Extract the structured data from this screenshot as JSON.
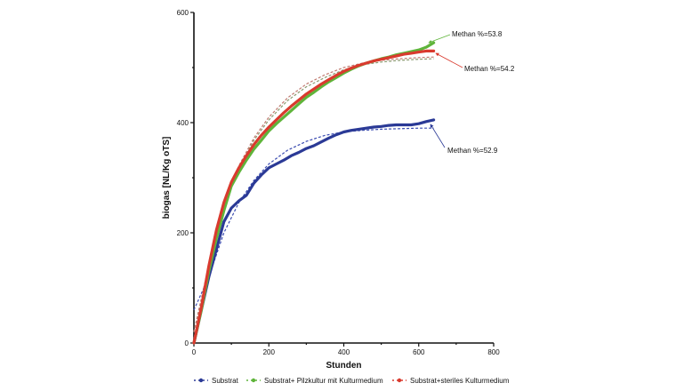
{
  "chart_data": {
    "type": "line",
    "xlabel": "Stunden",
    "ylabel": "biogas [NL/Kg oTS]",
    "xlim": [
      0,
      800
    ],
    "ylim": [
      0,
      600
    ],
    "xticks": [
      0,
      200,
      400,
      600,
      800
    ],
    "yticks": [
      0,
      200,
      400,
      600
    ],
    "legend_position": "bottom",
    "series": [
      {
        "name": "Substrat",
        "color": "#2b3a96",
        "fit_color": "#3a4bb0",
        "x": [
          0,
          20,
          40,
          60,
          80,
          100,
          120,
          140,
          160,
          180,
          200,
          220,
          240,
          260,
          280,
          300,
          320,
          340,
          360,
          380,
          400,
          420,
          440,
          460,
          480,
          500,
          520,
          540,
          560,
          580,
          600,
          620,
          640
        ],
        "y": [
          0,
          60,
          120,
          170,
          220,
          245,
          258,
          268,
          290,
          305,
          318,
          325,
          332,
          340,
          346,
          353,
          358,
          365,
          372,
          378,
          383,
          386,
          388,
          390,
          392,
          393,
          395,
          396,
          396,
          396,
          398,
          402,
          405
        ],
        "fit_x": [
          0,
          40,
          80,
          120,
          160,
          200,
          250,
          300,
          350,
          400,
          450,
          500,
          550,
          600,
          640
        ],
        "fit_y": [
          60,
          120,
          200,
          255,
          295,
          325,
          350,
          366,
          377,
          383,
          386,
          388,
          389,
          390,
          390
        ]
      },
      {
        "name": "Substrat+ Pilzkultur mit Kulturmedium",
        "color": "#5fb43a",
        "fit_color": "#8a9a70",
        "x": [
          0,
          20,
          40,
          60,
          80,
          100,
          120,
          140,
          160,
          180,
          200,
          220,
          240,
          260,
          280,
          300,
          320,
          340,
          360,
          380,
          400,
          420,
          440,
          460,
          480,
          500,
          520,
          540,
          560,
          580,
          600,
          620,
          640
        ],
        "y": [
          0,
          60,
          130,
          190,
          240,
          285,
          310,
          332,
          352,
          368,
          385,
          398,
          410,
          422,
          434,
          446,
          455,
          465,
          474,
          482,
          490,
          497,
          503,
          508,
          512,
          516,
          519,
          523,
          526,
          529,
          532,
          537,
          545
        ],
        "fit_x": [
          0,
          40,
          80,
          120,
          160,
          200,
          250,
          300,
          350,
          400,
          450,
          500,
          550,
          600,
          640
        ],
        "fit_y": [
          20,
          140,
          245,
          318,
          368,
          405,
          440,
          465,
          482,
          496,
          505,
          510,
          513,
          515,
          516
        ]
      },
      {
        "name": "Substrat+steriles Kulturmedium",
        "color": "#d93a2e",
        "fit_color": "#c07a70",
        "x": [
          0,
          20,
          40,
          60,
          80,
          100,
          120,
          140,
          160,
          180,
          200,
          220,
          240,
          260,
          280,
          300,
          320,
          340,
          360,
          380,
          400,
          420,
          440,
          460,
          480,
          500,
          520,
          540,
          560,
          580,
          600,
          620,
          640
        ],
        "y": [
          0,
          65,
          140,
          205,
          255,
          292,
          318,
          340,
          360,
          377,
          392,
          405,
          418,
          430,
          441,
          452,
          461,
          470,
          478,
          486,
          493,
          499,
          504,
          508,
          512,
          515,
          518,
          521,
          524,
          526,
          528,
          530,
          530
        ],
        "fit_x": [
          0,
          40,
          80,
          120,
          160,
          200,
          250,
          300,
          350,
          400,
          450,
          500,
          550,
          600,
          640
        ],
        "fit_y": [
          20,
          142,
          248,
          322,
          372,
          410,
          445,
          470,
          487,
          500,
          508,
          513,
          516,
          518,
          519
        ]
      }
    ],
    "annotations": [
      {
        "text": "Methan %=53.8",
        "series": "Substrat+ Pilzkultur mit Kulturmedium"
      },
      {
        "text": "Methan %=54.2",
        "series": "Substrat+steriles Kulturmedium"
      },
      {
        "text": "Methan %=52.9",
        "series": "Substrat"
      }
    ]
  }
}
